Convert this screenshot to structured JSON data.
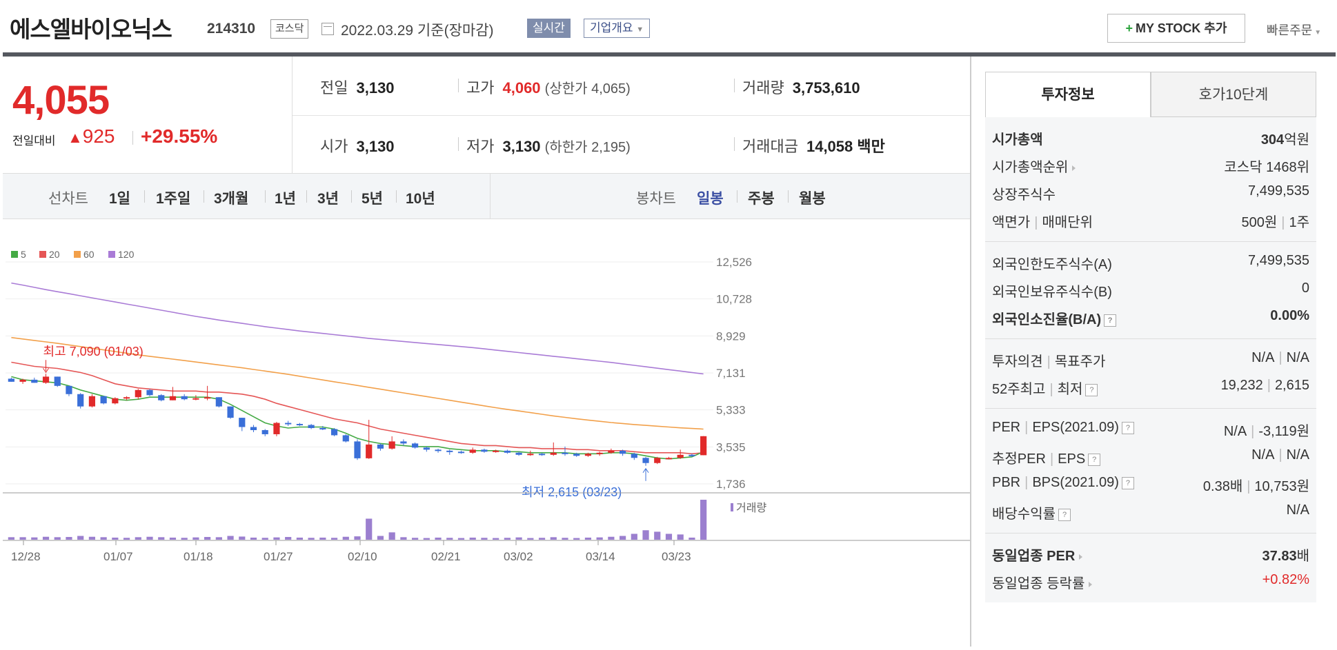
{
  "header": {
    "company": "에스엘바이오닉스",
    "code": "214310",
    "market": "코스닥",
    "date_text": "2022.03.29  기준(장마감)",
    "realtime": "실시간",
    "company_info": "기업개요",
    "mystock": "MY STOCK 추가",
    "quick_order": "빠른주문"
  },
  "price": {
    "current": "4,055",
    "diff_label": "전일대비",
    "diff_value": "925",
    "diff_pct": "+29.55%"
  },
  "stats": {
    "prev_label": "전일",
    "prev": "3,130",
    "high_label": "고가",
    "high": "4,060",
    "upper_limit": "(상한가 4,065)",
    "volume_label": "거래량",
    "volume": "3,753,610",
    "open_label": "시가",
    "open": "3,130",
    "low_label": "저가",
    "low": "3,130",
    "lower_limit": "(하한가 2,195)",
    "amount_label": "거래대금",
    "amount": "14,058",
    "amount_unit": "백만"
  },
  "controls": {
    "line_chart": "선차트",
    "periods": [
      "1일",
      "1주일",
      "3개월",
      "1년",
      "3년",
      "5년",
      "10년"
    ],
    "candle_chart": "봉차트",
    "candle_periods": [
      "일봉",
      "주봉",
      "월봉"
    ],
    "active_candle": "일봉"
  },
  "legend": [
    "5",
    "20",
    "60",
    "120"
  ],
  "colors": {
    "ma5": "#44aa44",
    "ma20": "#e55555",
    "ma60": "#f2a04a",
    "ma120": "#a97bd6",
    "up": "#e12a2a",
    "down": "#3a6fd8",
    "volume": "#9b7fcf"
  },
  "chart_data": {
    "type": "candlestick",
    "y_ticks": [
      "12,526",
      "10,728",
      "8,929",
      "7,131",
      "5,333",
      "3,535",
      "1,736"
    ],
    "ylim": [
      1736,
      12526
    ],
    "x_ticks": [
      "12/28",
      "01/07",
      "01/18",
      "01/27",
      "02/10",
      "02/21",
      "03/02",
      "03/14",
      "03/23"
    ],
    "annotations": {
      "high": "최고 7,090 (01/03)",
      "low": "최저 2,615 (03/23)"
    },
    "volume_label": "거래량",
    "candles": [
      [
        6850,
        6900,
        6700,
        6700
      ],
      [
        6700,
        6850,
        6600,
        6800
      ],
      [
        6800,
        6900,
        6650,
        6650
      ],
      [
        6650,
        7090,
        6600,
        6950
      ],
      [
        6950,
        6950,
        6450,
        6500
      ],
      [
        6500,
        6500,
        6000,
        6100
      ],
      [
        6100,
        6150,
        5400,
        5500
      ],
      [
        5500,
        6100,
        5450,
        6000
      ],
      [
        6000,
        6000,
        5600,
        5650
      ],
      [
        5650,
        5950,
        5600,
        5900
      ],
      [
        5900,
        6000,
        5800,
        5950
      ],
      [
        5950,
        6350,
        5850,
        6300
      ],
      [
        6300,
        6350,
        6000,
        6050
      ],
      [
        6050,
        6100,
        5750,
        5800
      ],
      [
        5800,
        6450,
        5800,
        6000
      ],
      [
        6000,
        6100,
        5800,
        5850
      ],
      [
        5850,
        6050,
        5800,
        5900
      ],
      [
        5900,
        6500,
        5800,
        5950
      ],
      [
        5950,
        5950,
        5450,
        5500
      ],
      [
        5500,
        5500,
        4900,
        4950
      ],
      [
        4950,
        4950,
        4300,
        4500
      ],
      [
        4500,
        4600,
        4250,
        4350
      ],
      [
        4350,
        4400,
        4050,
        4150
      ],
      [
        4150,
        4750,
        4050,
        4700
      ],
      [
        4700,
        4800,
        4550,
        4650
      ],
      [
        4650,
        4700,
        4550,
        4600
      ],
      [
        4600,
        4650,
        4400,
        4450
      ],
      [
        4450,
        4550,
        4350,
        4400
      ],
      [
        4400,
        4450,
        4050,
        4100
      ],
      [
        4100,
        4150,
        3750,
        3800
      ],
      [
        3800,
        3900,
        2900,
        2980
      ],
      [
        2980,
        4850,
        2950,
        3650
      ],
      [
        3650,
        3700,
        3350,
        3450
      ],
      [
        3450,
        4050,
        3400,
        3800
      ],
      [
        3800,
        3900,
        3600,
        3700
      ],
      [
        3700,
        3750,
        3450,
        3500
      ],
      [
        3500,
        3550,
        3300,
        3400
      ],
      [
        3400,
        3450,
        3250,
        3350
      ],
      [
        3350,
        3400,
        3150,
        3300
      ],
      [
        3300,
        3350,
        3200,
        3250
      ],
      [
        3250,
        3500,
        3200,
        3400
      ],
      [
        3400,
        3450,
        3250,
        3300
      ],
      [
        3300,
        3400,
        3250,
        3350
      ],
      [
        3350,
        3400,
        3200,
        3250
      ],
      [
        3250,
        3300,
        3100,
        3150
      ],
      [
        3150,
        3350,
        3100,
        3200
      ],
      [
        3200,
        3250,
        3100,
        3150
      ],
      [
        3150,
        3750,
        3100,
        3250
      ],
      [
        3250,
        3550,
        3100,
        3200
      ],
      [
        3200,
        3250,
        3050,
        3100
      ],
      [
        3100,
        3250,
        3050,
        3200
      ],
      [
        3200,
        3300,
        3100,
        3250
      ],
      [
        3250,
        3450,
        3200,
        3350
      ],
      [
        3350,
        3400,
        3100,
        3200
      ],
      [
        3200,
        3250,
        2900,
        3000
      ],
      [
        3000,
        3050,
        2615,
        2750
      ],
      [
        2750,
        3050,
        2700,
        3000
      ],
      [
        3000,
        3050,
        2950,
        3000
      ],
      [
        3000,
        3400,
        2950,
        3150
      ],
      [
        3150,
        3200,
        3050,
        3130
      ],
      [
        3130,
        4060,
        3130,
        4055
      ]
    ],
    "ma5": [
      6950,
      6800,
      6750,
      6700,
      6650,
      6500,
      6300,
      6150,
      6000,
      5850,
      5800,
      5850,
      5950,
      5950,
      5950,
      5950,
      5950,
      5950,
      5850,
      5600,
      5300,
      5000,
      4700,
      4550,
      4450,
      4500,
      4500,
      4500,
      4400,
      4200,
      3950,
      3800,
      3700,
      3650,
      3600,
      3550,
      3550,
      3550,
      3450,
      3400,
      3350,
      3350,
      3350,
      3300,
      3300,
      3250,
      3250,
      3250,
      3250,
      3200,
      3200,
      3200,
      3250,
      3250,
      3200,
      3100,
      3000,
      2950,
      3000,
      3050,
      3300
    ],
    "ma20": [
      7650,
      7550,
      7450,
      7400,
      7350,
      7250,
      7150,
      7000,
      6800,
      6600,
      6500,
      6400,
      6350,
      6300,
      6250,
      6250,
      6250,
      6200,
      6200,
      6150,
      6100,
      6000,
      5850,
      5650,
      5500,
      5350,
      5200,
      5050,
      4900,
      4800,
      4700,
      4550,
      4400,
      4300,
      4200,
      4100,
      4000,
      3900,
      3800,
      3700,
      3650,
      3600,
      3600,
      3550,
      3500,
      3500,
      3450,
      3450,
      3450,
      3400,
      3400,
      3350,
      3350,
      3350,
      3300,
      3250,
      3250,
      3250,
      3250,
      3200,
      3250
    ],
    "ma60": [
      8850,
      8780,
      8710,
      8640,
      8570,
      8490,
      8410,
      8330,
      8250,
      8170,
      8090,
      8010,
      7940,
      7870,
      7800,
      7730,
      7660,
      7590,
      7520,
      7450,
      7380,
      7300,
      7220,
      7140,
      7060,
      6970,
      6880,
      6790,
      6700,
      6610,
      6520,
      6430,
      6340,
      6250,
      6160,
      6070,
      5980,
      5890,
      5800,
      5710,
      5620,
      5530,
      5440,
      5360,
      5280,
      5200,
      5120,
      5040,
      4970,
      4900,
      4840,
      4780,
      4720,
      4670,
      4620,
      4580,
      4540,
      4500,
      4460,
      4430,
      4400
    ],
    "ma120": [
      11500,
      11400,
      11290,
      11180,
      11080,
      10980,
      10880,
      10780,
      10680,
      10580,
      10480,
      10380,
      10280,
      10180,
      10080,
      9980,
      9880,
      9790,
      9700,
      9620,
      9540,
      9460,
      9380,
      9310,
      9240,
      9170,
      9110,
      9050,
      8990,
      8930,
      8870,
      8810,
      8760,
      8710,
      8660,
      8610,
      8560,
      8510,
      8460,
      8410,
      8360,
      8300,
      8240,
      8180,
      8120,
      8060,
      8000,
      7940,
      7880,
      7820,
      7760,
      7700,
      7640,
      7570,
      7500,
      7430,
      7360,
      7290,
      7220,
      7150,
      7080
    ],
    "volume": [
      12,
      12,
      11,
      14,
      12,
      13,
      18,
      14,
      12,
      10,
      9,
      12,
      14,
      12,
      10,
      9,
      11,
      13,
      12,
      18,
      15,
      10,
      9,
      11,
      13,
      10,
      9,
      10,
      9,
      14,
      16,
      100,
      18,
      35,
      12,
      9,
      8,
      10,
      9,
      8,
      10,
      9,
      8,
      9,
      11,
      8,
      9,
      12,
      9,
      8,
      10,
      11,
      14,
      18,
      28,
      45,
      38,
      28,
      25,
      10,
      190
    ]
  },
  "side": {
    "tab_info": "투자정보",
    "tab_orderbook": "호가10단계",
    "market_cap_label": "시가총액",
    "market_cap_value": "304",
    "market_cap_unit": "억원",
    "rank_label": "시가총액순위",
    "rank_value": "코스닥 1468위",
    "shares_label": "상장주식수",
    "shares_value": "7,499,535",
    "face_label": "액면가",
    "unit_label": "매매단위",
    "face_value": "500원",
    "unit_value": "1주",
    "foreign_limit_label": "외국인한도주식수(A)",
    "foreign_limit_value": "7,499,535",
    "foreign_hold_label": "외국인보유주식수(B)",
    "foreign_hold_value": "0",
    "foreign_ratio_label": "외국인소진율(B/A)",
    "foreign_ratio_value": "0.00%",
    "opinion_label": "투자의견",
    "target_label": "목표주가",
    "opinion_value": "N/A",
    "target_value": "N/A",
    "w52_high_label": "52주최고",
    "w52_low_label": "최저",
    "w52_high_value": "19,232",
    "w52_low_value": "2,615",
    "per_label": "PER",
    "eps_label": "EPS(2021.09)",
    "per_value": "N/A",
    "eps_value": "-3,119원",
    "est_per_label": "추정PER",
    "est_eps_label": "EPS",
    "est_per_value": "N/A",
    "est_eps_value": "N/A",
    "pbr_label": "PBR",
    "bps_label": "BPS(2021.09)",
    "pbr_value": "0.38배",
    "bps_value": "10,753원",
    "div_label": "배당수익률",
    "div_value": "N/A",
    "ind_per_label": "동일업종 PER",
    "ind_per_value": "37.83",
    "ind_per_unit": "배",
    "ind_rate_label": "동일업종 등락률",
    "ind_rate_value": "+0.82%"
  }
}
